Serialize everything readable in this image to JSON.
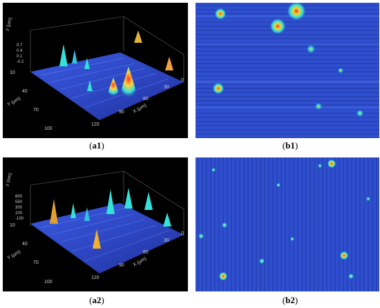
{
  "panels": {
    "a1": {
      "z_axis_label": "z (µm)",
      "z_ticks": [
        "0.7",
        "0.4",
        "0.1",
        "-0.2"
      ],
      "y_axis_label": "Y (µm)",
      "y_ticks": [
        "10",
        "40",
        "70",
        "100"
      ],
      "x_axis_label": "X (µm)",
      "x_ticks": [
        "120",
        "90",
        "60",
        "30",
        "0"
      ],
      "caption_letter": "a1"
    },
    "b1": {
      "caption_letter": "b1"
    },
    "a2": {
      "z_axis_label": "z (nm)",
      "z_ticks": [
        "800",
        "550",
        "300",
        "100",
        "-100"
      ],
      "y_axis_label": "Y (µm)",
      "y_ticks": [
        "10",
        "40",
        "70",
        "100"
      ],
      "x_axis_label": "X (µm)",
      "x_ticks": [
        "120",
        "90",
        "60",
        "30",
        "0"
      ],
      "caption_letter": "a2"
    },
    "b2": {
      "caption_letter": "b2"
    }
  },
  "colors": {
    "surface_blue": "#2f4fd0",
    "peak_cyan": "#34e0d8",
    "peak_yellow": "#f2d530",
    "peak_red": "#e53a2a",
    "background_black": "#000000"
  }
}
